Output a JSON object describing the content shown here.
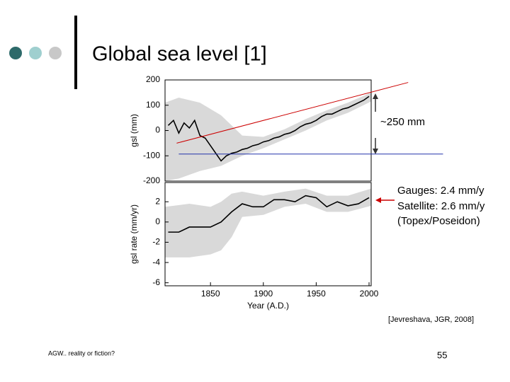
{
  "slide": {
    "title": "Global sea level [1]",
    "citation": "[Jevreshava, JGR, 2008]",
    "footer_left": "AGW.. reality or fiction?",
    "page_number": "55"
  },
  "annotations": {
    "range": "~250 mm",
    "gauges": "Gauges: 2.4 mm/y",
    "satellite": "Satellite: 2.6 mm/y",
    "satellite_name": "(Topex/Poseidon)"
  },
  "chart_data": [
    {
      "type": "line",
      "ylabel": "gsl (mm)",
      "xlim": [
        1807,
        2002
      ],
      "ylim": [
        -200,
        200
      ],
      "yticks": [
        -200,
        -100,
        0,
        100,
        200
      ],
      "x": [
        1810,
        1815,
        1820,
        1825,
        1830,
        1835,
        1840,
        1845,
        1850,
        1855,
        1860,
        1865,
        1870,
        1875,
        1880,
        1885,
        1890,
        1895,
        1900,
        1905,
        1910,
        1915,
        1920,
        1925,
        1930,
        1935,
        1940,
        1945,
        1950,
        1955,
        1960,
        1965,
        1970,
        1975,
        1980,
        1985,
        1990,
        1995,
        2000
      ],
      "values": [
        20,
        40,
        -10,
        30,
        10,
        40,
        -20,
        -30,
        -60,
        -90,
        -120,
        -100,
        -90,
        -85,
        -75,
        -70,
        -60,
        -55,
        -45,
        -40,
        -30,
        -25,
        -15,
        -10,
        0,
        15,
        25,
        30,
        40,
        55,
        65,
        65,
        75,
        85,
        90,
        100,
        110,
        120,
        135
      ],
      "color": "#000000",
      "band_x": [
        1807,
        1820,
        1840,
        1860,
        1880,
        1900,
        1920,
        1940,
        1960,
        1980,
        2002
      ],
      "band_lower": [
        -200,
        -190,
        -160,
        -140,
        -100,
        -70,
        -35,
        0,
        40,
        70,
        115
      ],
      "band_upper": [
        110,
        130,
        110,
        60,
        -20,
        -25,
        5,
        45,
        80,
        110,
        150
      ],
      "band_color": "#d9d9d9",
      "trend_line": {
        "x": [
          1818,
          2037
        ],
        "y": [
          -50,
          190
        ],
        "color": "#cc0000"
      },
      "reference_line": {
        "x": [
          1820,
          2070
        ],
        "y": -93,
        "color": "#2233aa"
      }
    },
    {
      "type": "line",
      "xlabel": "Year (A.D.)",
      "ylabel": "gsl rate (mm/yr)",
      "xlim": [
        1807,
        2002
      ],
      "ylim": [
        -6.3,
        3.9
      ],
      "xticks": [
        1850,
        1900,
        1950,
        2000
      ],
      "yticks": [
        -6,
        -4,
        -2,
        0,
        2
      ],
      "x": [
        1810,
        1820,
        1830,
        1840,
        1850,
        1860,
        1870,
        1880,
        1890,
        1900,
        1910,
        1920,
        1930,
        1940,
        1950,
        1960,
        1970,
        1980,
        1990,
        2000
      ],
      "values": [
        -1,
        -1,
        -0.5,
        -0.5,
        -0.5,
        0,
        1,
        1.8,
        1.5,
        1.5,
        2.2,
        2.2,
        2,
        2.6,
        2.4,
        1.5,
        2,
        1.6,
        1.8,
        2.4
      ],
      "color": "#000000",
      "band_x": [
        1807,
        1830,
        1850,
        1860,
        1870,
        1880,
        1900,
        1920,
        1940,
        1960,
        1980,
        2002
      ],
      "band_lower": [
        -3.5,
        -3.5,
        -3.2,
        -2.8,
        -1.5,
        0.5,
        0.7,
        1.5,
        1.8,
        1,
        1,
        1.6
      ],
      "band_upper": [
        1.5,
        1.8,
        1.5,
        2,
        2.8,
        3,
        2.6,
        3,
        3.3,
        2.6,
        2.6,
        3.3
      ],
      "band_color": "#d9d9d9"
    }
  ]
}
